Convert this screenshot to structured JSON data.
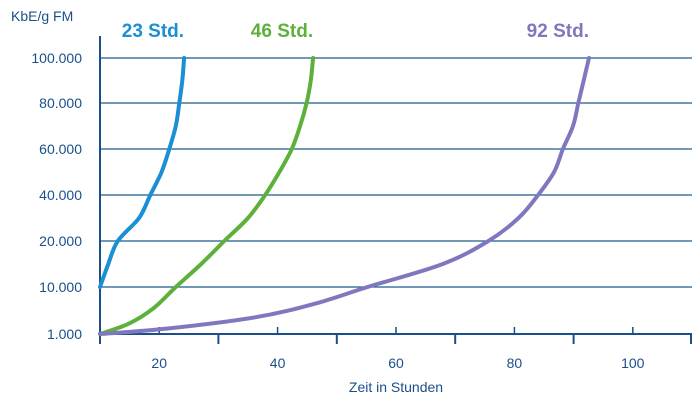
{
  "chart_data": {
    "type": "line",
    "title": "",
    "ylabel": "KbE/g FM",
    "xlabel": "Zeit in Stunden",
    "x_ticks": [
      20,
      40,
      60,
      80,
      100
    ],
    "x_tick_labels": [
      "20",
      "40",
      "60",
      "80",
      "100"
    ],
    "xlim": [
      10,
      110
    ],
    "y_tick_labels": [
      "1.000",
      "10.000",
      "20.000",
      "40.000",
      "60.000",
      "80.000",
      "100.000"
    ],
    "y_tick_values": [
      1000,
      10000,
      20000,
      40000,
      60000,
      80000,
      100000
    ],
    "y_scale": "piecewise (1.000–10.000 and 10.000–20.000 occupy one band each, then steps of 20.000)",
    "grid": "horizontal",
    "series": [
      {
        "name": "23 Std.",
        "color": "#1a8fd3",
        "points": [
          [
            10.0,
            10000
          ],
          [
            11.4,
            15000
          ],
          [
            13.0,
            20000
          ],
          [
            16.6,
            30000
          ],
          [
            18.5,
            40000
          ],
          [
            20.4,
            50000
          ],
          [
            21.7,
            60000
          ],
          [
            22.8,
            70000
          ],
          [
            23.4,
            80000
          ],
          [
            23.9,
            90000
          ],
          [
            24.2,
            100000
          ]
        ]
      },
      {
        "name": "46 Std.",
        "color": "#5db13b",
        "points": [
          [
            10.0,
            1000
          ],
          [
            14.9,
            3000
          ],
          [
            19.1,
            6000
          ],
          [
            22.8,
            10000
          ],
          [
            27.1,
            15000
          ],
          [
            31.0,
            20000
          ],
          [
            35.0,
            30000
          ],
          [
            37.9,
            40000
          ],
          [
            40.3,
            50000
          ],
          [
            42.4,
            60000
          ],
          [
            43.8,
            70000
          ],
          [
            44.9,
            80000
          ],
          [
            45.6,
            90000
          ],
          [
            46.0,
            100000
          ]
        ]
      },
      {
        "name": "92 Std.",
        "color": "#7f78bf",
        "points": [
          [
            10.0,
            1000
          ],
          [
            21.0,
            2000
          ],
          [
            36.2,
            4200
          ],
          [
            46.3,
            6800
          ],
          [
            55.2,
            10000
          ],
          [
            67.9,
            15000
          ],
          [
            75.6,
            20000
          ],
          [
            80.7,
            30000
          ],
          [
            84.0,
            40000
          ],
          [
            86.7,
            50000
          ],
          [
            88.2,
            60000
          ],
          [
            89.9,
            70000
          ],
          [
            90.8,
            80000
          ],
          [
            91.7,
            90000
          ],
          [
            92.6,
            100000
          ]
        ]
      }
    ]
  }
}
